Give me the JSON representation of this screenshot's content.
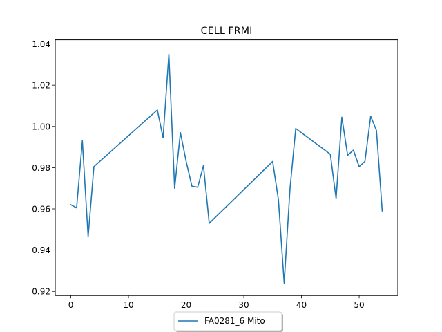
{
  "chart_data": {
    "type": "line",
    "title": "CELL FRMI",
    "xlabel": "",
    "ylabel": "",
    "xlim": [
      -2.7,
      56.7
    ],
    "ylim": [
      0.918,
      1.042
    ],
    "xticks": [
      0,
      10,
      20,
      30,
      40,
      50
    ],
    "yticks": [
      0.92,
      0.94,
      0.96,
      0.98,
      1.0,
      1.02,
      1.04
    ],
    "xtick_labels": [
      "0",
      "10",
      "20",
      "30",
      "40",
      "50"
    ],
    "ytick_labels": [
      "0.92",
      "0.94",
      "0.96",
      "0.98",
      "1.00",
      "1.02",
      "1.04"
    ],
    "grid": false,
    "legend_position": "bottom-center-outside",
    "series": [
      {
        "name": "FA0281_6 Mito",
        "color": "#1f77b4",
        "x": [
          0,
          1,
          2,
          3,
          4,
          15,
          16,
          17,
          18,
          19,
          20,
          21,
          22,
          23,
          24,
          35,
          36,
          37,
          38,
          39,
          45,
          46,
          47,
          48,
          49,
          50,
          51,
          52,
          53,
          54
        ],
        "y": [
          0.962,
          0.9605,
          0.993,
          0.9465,
          0.9805,
          1.008,
          0.9945,
          1.035,
          0.97,
          0.997,
          0.983,
          0.971,
          0.9705,
          0.981,
          0.953,
          0.983,
          0.9645,
          0.924,
          0.9695,
          0.999,
          0.9865,
          0.965,
          1.0045,
          0.986,
          0.9885,
          0.9805,
          0.983,
          1.005,
          0.998,
          0.959
        ]
      }
    ]
  }
}
